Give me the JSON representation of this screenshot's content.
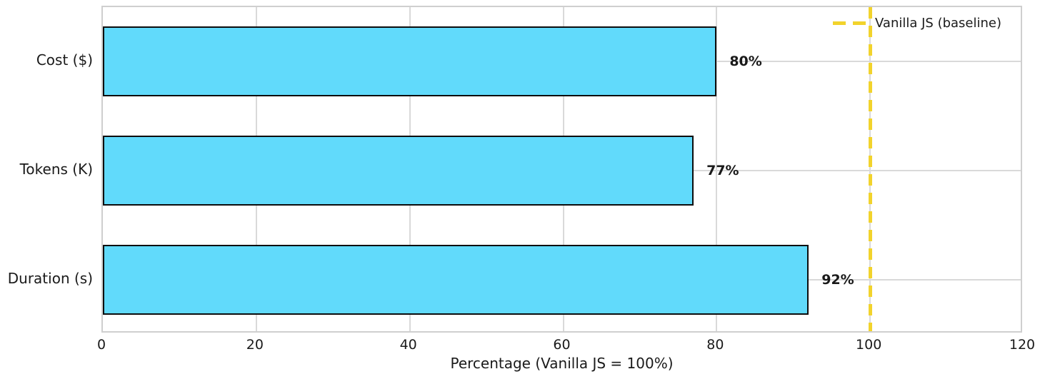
{
  "chart_data": {
    "type": "bar",
    "orientation": "horizontal",
    "categories": [
      "Cost ($)",
      "Tokens (K)",
      "Duration (s)"
    ],
    "values": [
      80,
      77,
      92
    ],
    "value_labels": [
      "80%",
      "77%",
      "92%"
    ],
    "xlabel": "Percentage (Vanilla JS = 100%)",
    "xlim": [
      0,
      120
    ],
    "xticks": [
      0,
      20,
      40,
      60,
      80,
      100,
      120
    ],
    "grid": true,
    "legend_position": "upper-right",
    "baseline": {
      "value": 100,
      "label": "Vanilla JS (baseline)"
    },
    "colors": {
      "bar_fill": "#61DAFB",
      "bar_edge": "#0d0d0d",
      "baseline": "#F2D32C",
      "grid": "#d9d9d9",
      "spine": "#cfcfcf",
      "text": "#1a1a1a"
    }
  }
}
